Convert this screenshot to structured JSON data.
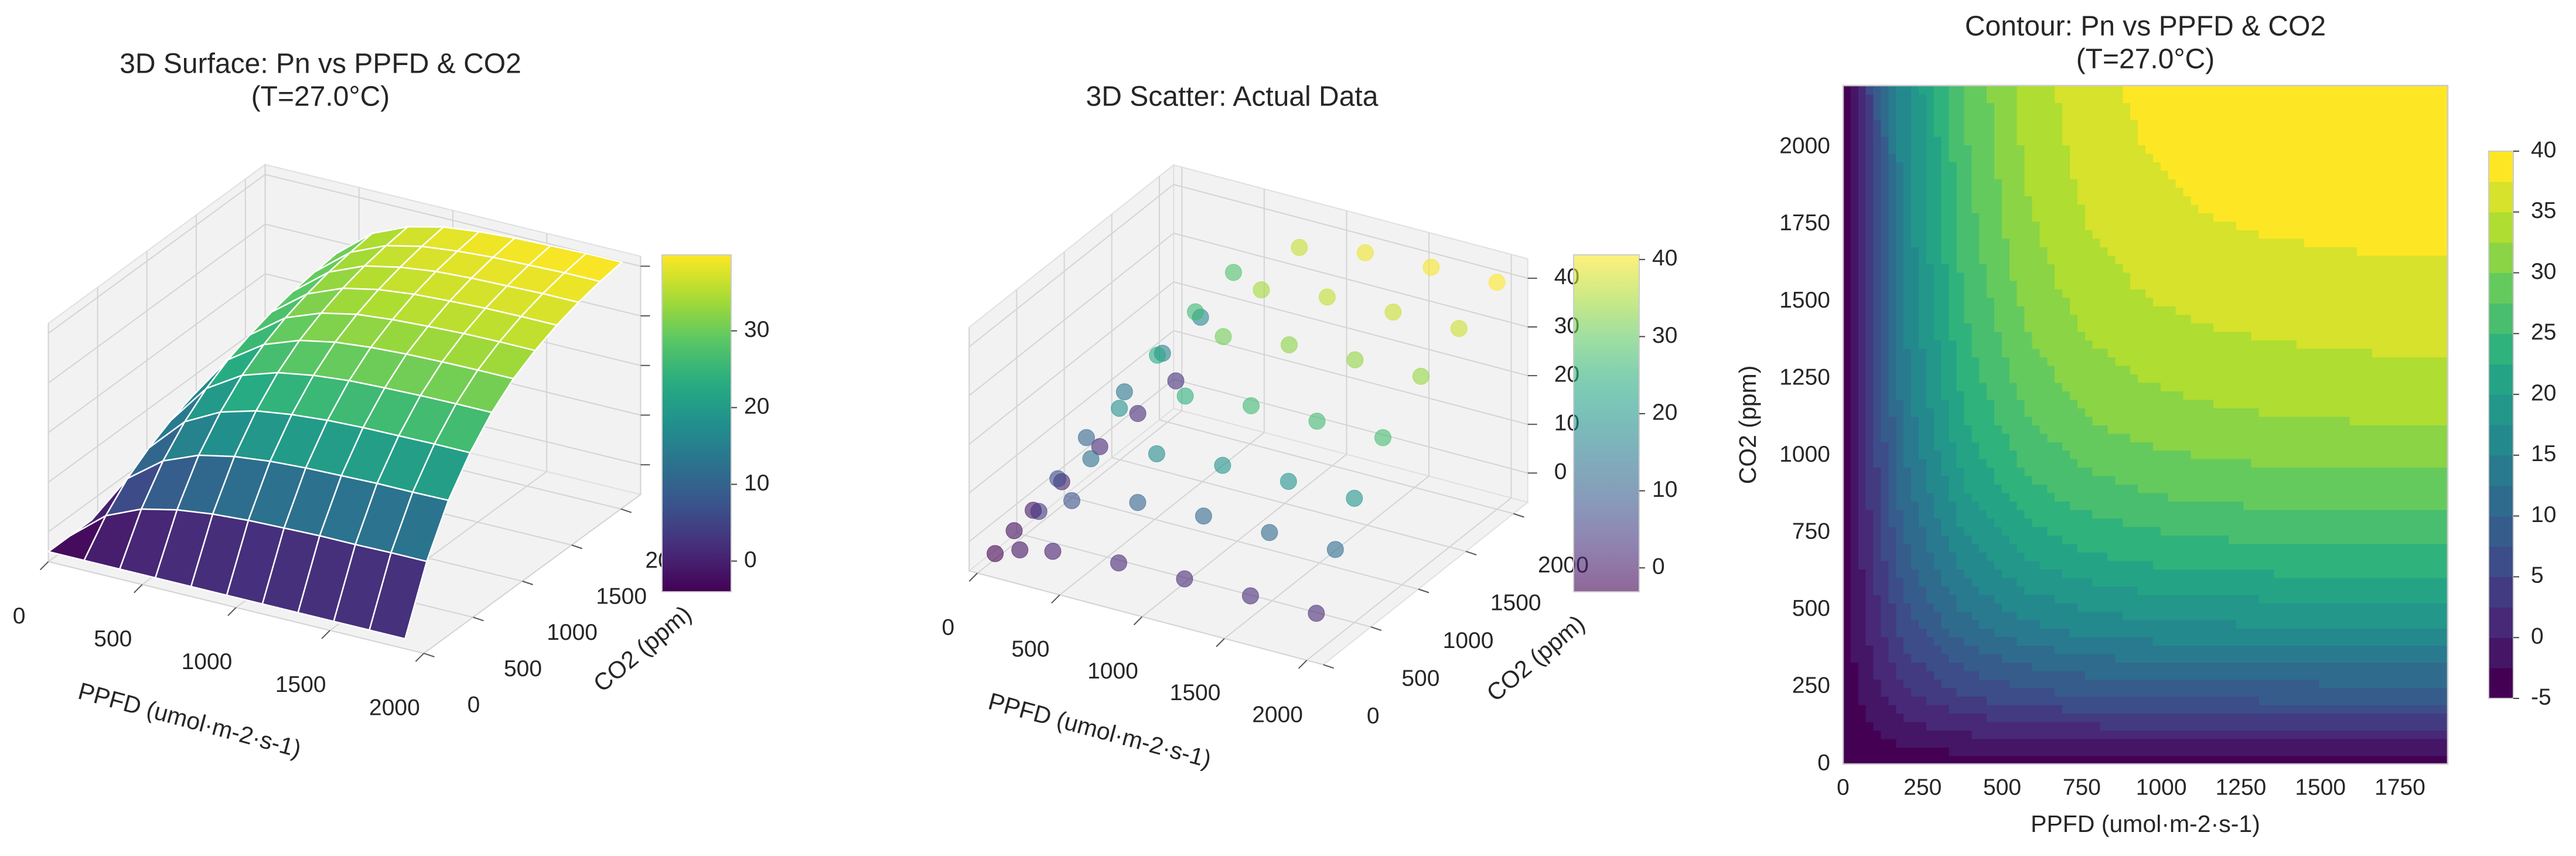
{
  "chart_data": [
    {
      "type": "surface3d",
      "title": "3D Surface: Pn vs PPFD & CO2",
      "subtitle": "(T=27.0°C)",
      "xlabel": "PPFD (umol·m-2·s-1)",
      "ylabel": "CO2 (ppm)",
      "x": [
        0,
        190,
        380,
        570,
        760,
        950,
        1140,
        1330,
        1520,
        1710,
        1900
      ],
      "y": [
        0,
        220,
        440,
        660,
        880,
        1100,
        1320,
        1540,
        1760,
        1980,
        2200
      ],
      "z": [
        [
          -4,
          -4,
          -4,
          -4,
          -4,
          -4,
          -4,
          -4,
          -4,
          -4,
          -4
        ],
        [
          -4,
          1.8,
          4.9,
          6.5,
          7.4,
          7.9,
          8.1,
          8.3,
          8.3,
          8.4,
          8.4
        ],
        [
          -4,
          6.1,
          11.4,
          14.3,
          15.8,
          16.6,
          17.0,
          17.2,
          17.4,
          17.4,
          17.5
        ],
        [
          -4,
          9.1,
          16.1,
          19.8,
          21.8,
          22.8,
          23.4,
          23.7,
          23.8,
          23.9,
          23.9
        ],
        [
          -4,
          11.4,
          19.6,
          24.0,
          26.3,
          27.5,
          28.2,
          28.5,
          28.7,
          28.8,
          28.8
        ],
        [
          -4,
          13.1,
          22.2,
          27.0,
          29.6,
          31.0,
          31.7,
          32.1,
          32.3,
          32.4,
          32.4
        ],
        [
          -4,
          14.3,
          24.0,
          29.2,
          31.9,
          33.4,
          34.1,
          34.5,
          34.8,
          34.9,
          34.9
        ],
        [
          -4,
          15.2,
          25.4,
          30.8,
          33.7,
          35.2,
          36.0,
          36.4,
          36.7,
          36.8,
          36.8
        ],
        [
          -4,
          15.8,
          26.4,
          32.0,
          35.0,
          36.5,
          37.4,
          37.8,
          38.0,
          38.2,
          38.2
        ],
        [
          -4,
          16.3,
          27.1,
          32.8,
          35.9,
          37.5,
          38.3,
          38.8,
          39.0,
          39.2,
          39.2
        ],
        [
          -4,
          16.6,
          27.6,
          33.4,
          36.5,
          38.2,
          39.0,
          39.5,
          39.7,
          39.9,
          39.9
        ]
      ],
      "xlim": [
        0,
        2000
      ],
      "ylim": [
        0,
        2200
      ],
      "zlim": [
        -6,
        42
      ],
      "xticks": [
        0,
        500,
        1000,
        1500,
        2000
      ],
      "yticks": [
        0,
        500,
        1000,
        1500,
        2000
      ],
      "zticks": [
        0,
        10,
        20,
        30,
        40
      ],
      "colormap": "viridis",
      "clim": [
        -4,
        39.9
      ],
      "colorbar_ticks": [
        0,
        10,
        20,
        30
      ],
      "edgecolor": "#ffffff"
    },
    {
      "type": "scatter3d",
      "title": "3D Scatter: Actual Data",
      "xlabel": "PPFD (umol·m-2·s-1)",
      "ylabel": "CO2 (ppm)",
      "x": [
        50,
        200,
        400,
        800,
        1200,
        1600,
        2000,
        50,
        200,
        400,
        800,
        1200,
        1600,
        2000,
        50,
        200,
        400,
        800,
        1200,
        1600,
        2000,
        50,
        200,
        400,
        800,
        1200,
        1600,
        2000,
        50,
        200,
        400,
        800,
        1200,
        1600,
        2000,
        50,
        200,
        400,
        800,
        1200,
        1600,
        2000,
        50,
        200,
        400,
        800,
        1200,
        1600,
        2000
      ],
      "y": [
        100,
        100,
        100,
        100,
        100,
        100,
        100,
        300,
        300,
        300,
        300,
        300,
        300,
        300,
        500,
        500,
        500,
        500,
        500,
        500,
        500,
        800,
        800,
        800,
        800,
        800,
        800,
        800,
        1200,
        1200,
        1200,
        1200,
        1200,
        1200,
        1200,
        1600,
        1600,
        1600,
        1600,
        1600,
        1600,
        1600,
        2000,
        2000,
        2000,
        2000,
        2000,
        2000,
        2000
      ],
      "z": [
        -3.1,
        -1.0,
        0.5,
        1.7,
        2.0,
        2.1,
        2.1,
        -1.5,
        3.8,
        7.8,
        11.0,
        11.8,
        12.0,
        12.1,
        -0.4,
        7.4,
        13.3,
        17.9,
        19.1,
        19.4,
        19.5,
        0.8,
        11.2,
        19.0,
        25.1,
        26.7,
        27.1,
        27.3,
        1.8,
        14.4,
        23.7,
        31.1,
        33.0,
        33.5,
        33.7,
        2.4,
        16.1,
        26.4,
        34.5,
        36.6,
        37.1,
        37.3,
        2.9,
        17.3,
        28.3,
        37.0,
        39.5,
        40.1,
        40.6
      ],
      "xlim": [
        -50,
        2100
      ],
      "ylim": [
        0,
        2150
      ],
      "zlim": [
        -6,
        44
      ],
      "xticks": [
        0,
        500,
        1000,
        1500,
        2000
      ],
      "yticks": [
        0,
        500,
        1000,
        1500,
        2000
      ],
      "zticks": [
        0,
        10,
        20,
        30,
        40
      ],
      "colormap": "viridis",
      "clim": [
        -3.1,
        40.6
      ],
      "colorbar_ticks": [
        0,
        10,
        20,
        30,
        40
      ],
      "alpha": 0.6
    },
    {
      "type": "contour",
      "title": "Contour: Pn vs PPFD & CO2",
      "subtitle": "(T=27.0°C)",
      "xlabel": "PPFD (umol·m-2·s-1)",
      "ylabel": "CO2 (ppm)",
      "x": [
        0,
        190,
        380,
        570,
        760,
        950,
        1140,
        1330,
        1520,
        1710,
        1900
      ],
      "y": [
        0,
        220,
        440,
        660,
        880,
        1100,
        1320,
        1540,
        1760,
        1980,
        2200
      ],
      "z": [
        [
          -4,
          -4,
          -4,
          -4,
          -4,
          -4,
          -4,
          -4,
          -4,
          -4,
          -4
        ],
        [
          -4,
          1.8,
          4.9,
          6.5,
          7.4,
          7.9,
          8.1,
          8.3,
          8.3,
          8.4,
          8.4
        ],
        [
          -4,
          6.1,
          11.4,
          14.3,
          15.8,
          16.6,
          17.0,
          17.2,
          17.4,
          17.4,
          17.5
        ],
        [
          -4,
          9.1,
          16.1,
          19.8,
          21.8,
          22.8,
          23.4,
          23.7,
          23.8,
          23.9,
          23.9
        ],
        [
          -4,
          11.4,
          19.6,
          24.0,
          26.3,
          27.5,
          28.2,
          28.5,
          28.7,
          28.8,
          28.8
        ],
        [
          -4,
          13.1,
          22.2,
          27.0,
          29.6,
          31.0,
          31.7,
          32.1,
          32.3,
          32.4,
          32.4
        ],
        [
          -4,
          14.3,
          24.0,
          29.2,
          31.9,
          33.4,
          34.1,
          34.5,
          34.8,
          34.9,
          34.9
        ],
        [
          -4,
          15.2,
          25.4,
          30.8,
          33.7,
          35.2,
          36.0,
          36.4,
          36.7,
          36.8,
          36.8
        ],
        [
          -4,
          15.8,
          26.4,
          32.0,
          35.0,
          36.5,
          37.4,
          37.8,
          38.0,
          38.2,
          38.2
        ],
        [
          -4,
          16.3,
          27.1,
          32.8,
          35.9,
          37.5,
          38.3,
          38.8,
          39.0,
          39.2,
          39.2
        ],
        [
          -4,
          16.6,
          27.6,
          33.4,
          36.5,
          38.2,
          39.0,
          39.5,
          39.7,
          39.9,
          39.9
        ]
      ],
      "xlim": [
        0,
        1900
      ],
      "ylim": [
        0,
        2200
      ],
      "xticks": [
        0,
        250,
        500,
        750,
        1000,
        1250,
        1500,
        1750
      ],
      "yticks": [
        0,
        250,
        500,
        750,
        1000,
        1250,
        1500,
        1750,
        2000
      ],
      "colormap": "viridis",
      "levels": [
        -5,
        -2.5,
        0,
        2.5,
        5,
        7.5,
        10,
        12.5,
        15,
        17.5,
        20,
        22.5,
        25,
        27.5,
        30,
        32.5,
        35,
        37.5,
        40
      ],
      "colorbar_ticks": [
        -5,
        0,
        5,
        10,
        15,
        20,
        25,
        30,
        35,
        40
      ]
    }
  ]
}
